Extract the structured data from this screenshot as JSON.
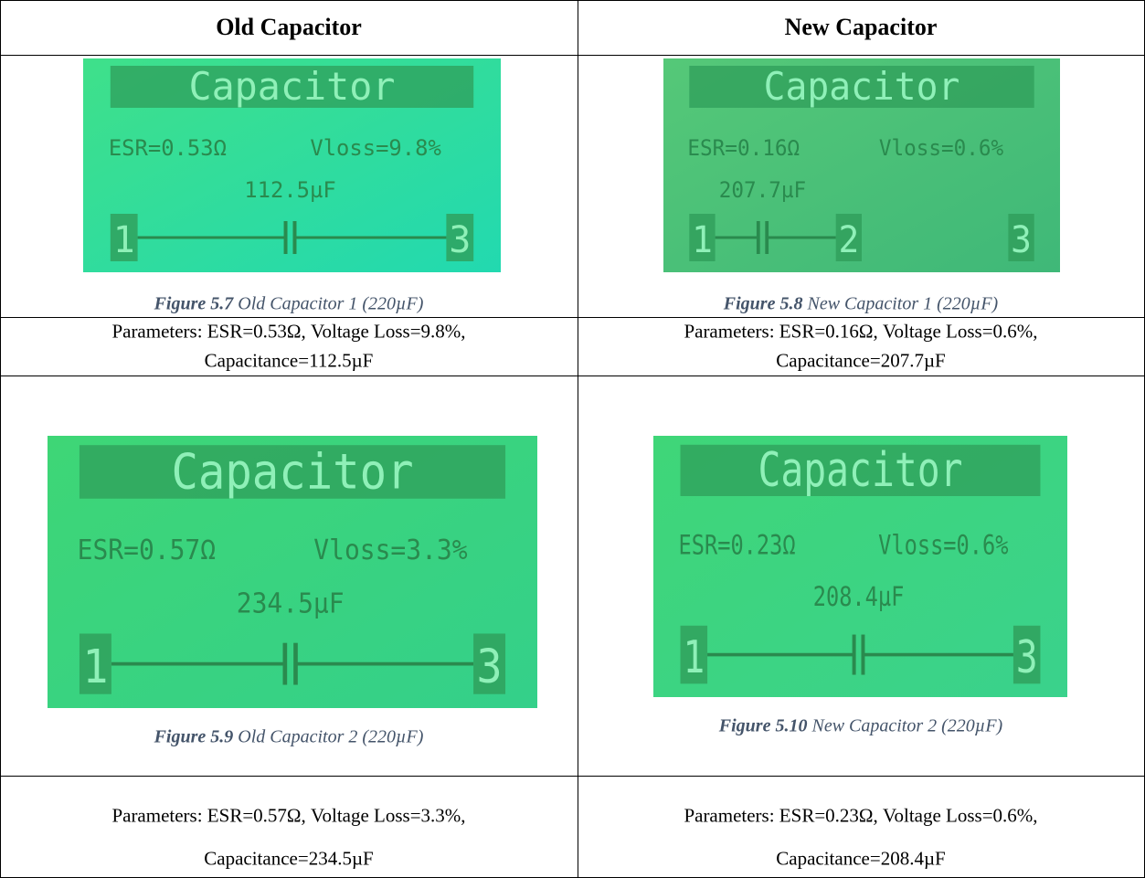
{
  "table": {
    "header": [
      "Old Capacitor",
      "New Capacitor"
    ],
    "figures": [
      {
        "screen": {
          "title": "Capacitor",
          "esr": "ESR=0.53Ω",
          "vloss": "Vloss=9.8%",
          "capacitance": "112.5µF",
          "pins": [
            "1",
            "3"
          ]
        },
        "caption": {
          "label": "Figure 5.7",
          "text": "Old Capacitor 1 (220µF)"
        },
        "parameters": [
          "Parameters: ESR=0.53Ω, Voltage Loss=9.8%,",
          "Capacitance=112.5µF"
        ]
      },
      {
        "screen": {
          "title": "Capacitor",
          "esr": "ESR=0.16Ω",
          "vloss": "Vloss=0.6%",
          "capacitance": "207.7µF",
          "pins": [
            "1",
            "2",
            "3"
          ]
        },
        "caption": {
          "label": "Figure 5.8",
          "text": "New Capacitor 1 (220µF)"
        },
        "parameters": [
          "Parameters: ESR=0.16Ω, Voltage Loss=0.6%,",
          "Capacitance=207.7µF"
        ]
      },
      {
        "screen": {
          "title": "Capacitor",
          "esr": "ESR=0.57Ω",
          "vloss": "Vloss=3.3%",
          "capacitance": "234.5µF",
          "pins": [
            "1",
            "3"
          ]
        },
        "caption": {
          "label": "Figure 5.9",
          "text": "Old Capacitor 2 (220µF)"
        },
        "parameters": [
          "Parameters: ESR=0.57Ω, Voltage Loss=3.3%,",
          "Capacitance=234.5µF"
        ]
      },
      {
        "screen": {
          "title": "Capacitor",
          "esr": "ESR=0.23Ω",
          "vloss": "Vloss=0.6%",
          "capacitance": "208.4µF",
          "pins": [
            "1",
            "3"
          ]
        },
        "caption": {
          "label": "Figure 5.10",
          "text": "New Capacitor 2 (220µF)"
        },
        "parameters": [
          "Parameters: ESR=0.23Ω, Voltage Loss=0.6%,",
          "Capacitance=208.4µF"
        ]
      }
    ]
  }
}
